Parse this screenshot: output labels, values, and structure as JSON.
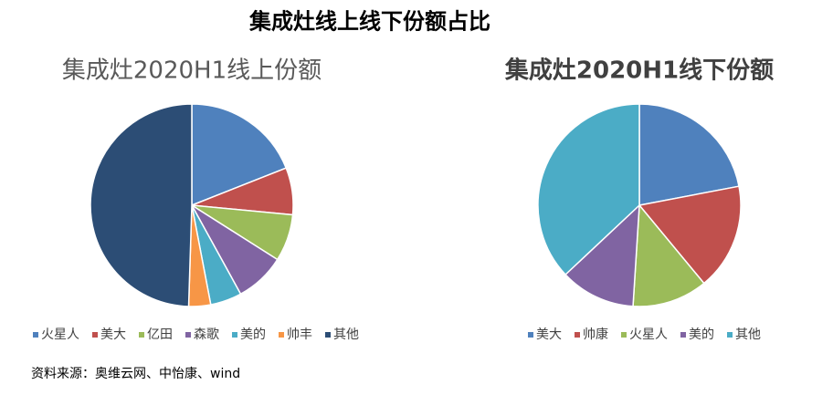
{
  "title": "集成灶线上线下份额占比",
  "source": "资料来源：奥维云网、中怡康、wind",
  "chart_data": [
    {
      "type": "pie",
      "title": "集成灶2020H1线上份额",
      "categories": [
        "火星人",
        "美大",
        "亿田",
        "森歌",
        "美的",
        "帅丰",
        "其他"
      ],
      "values": [
        19,
        7.5,
        7.5,
        8,
        5,
        3.5,
        49.5
      ],
      "colors": [
        "#4f81bd",
        "#c0504d",
        "#9bbb59",
        "#8064a2",
        "#4bacc6",
        "#f79646",
        "#2c4d75"
      ]
    },
    {
      "type": "pie",
      "title": "集成灶2020H1线下份额",
      "categories": [
        "美大",
        "帅康",
        "火星人",
        "美的",
        "其他"
      ],
      "values": [
        22,
        17,
        12,
        12,
        37
      ],
      "colors": [
        "#4f81bd",
        "#c0504d",
        "#9bbb59",
        "#8064a2",
        "#4bacc6"
      ]
    }
  ]
}
